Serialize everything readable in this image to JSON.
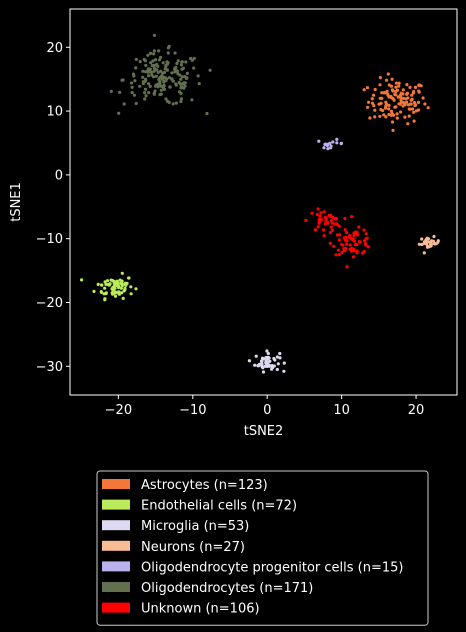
{
  "chart_data": {
    "type": "scatter",
    "xlabel": "tSNE2",
    "ylabel": "tSNE1",
    "xlim": [
      -26.5,
      25.5
    ],
    "ylim": [
      -34.5,
      26
    ],
    "xticks": [
      -20,
      -10,
      0,
      10,
      20
    ],
    "yticks": [
      -30,
      -20,
      -10,
      0,
      10,
      20
    ],
    "background": "#000000",
    "legend_position": "below",
    "series": [
      {
        "name": "Astrocytes (n=123)",
        "color": "#f37738",
        "n": 123,
        "clusters": [
          {
            "cx": 17.5,
            "cy": 11.5,
            "sx": 2.6,
            "sy": 2.3
          }
        ]
      },
      {
        "name": "Endothelial cells (n=72)",
        "color": "#bbea5b",
        "n": 72,
        "clusters": [
          {
            "cx": -20.5,
            "cy": -17.5,
            "sx": 1.7,
            "sy": 1.2
          }
        ]
      },
      {
        "name": "Microglia (n=53)",
        "color": "#dcd9f0",
        "n": 53,
        "clusters": [
          {
            "cx": 0.0,
            "cy": -29.3,
            "sx": 1.1,
            "sy": 1.0
          }
        ]
      },
      {
        "name": "Neurons (n=27)",
        "color": "#f9bc95",
        "n": 27,
        "clusters": [
          {
            "cx": 21.8,
            "cy": -10.7,
            "sx": 0.9,
            "sy": 0.6
          }
        ]
      },
      {
        "name": "Oligodendrocyte progenitor cells (n=15)",
        "color": "#b9b2ed",
        "n": 15,
        "clusters": [
          {
            "cx": 8.5,
            "cy": 4.9,
            "sx": 1.2,
            "sy": 0.4
          }
        ]
      },
      {
        "name": "Oligodendrocytes (n=171)",
        "color": "#627050",
        "n": 171,
        "clusters": [
          {
            "cx": -14.0,
            "cy": 15.0,
            "sx": 3.5,
            "sy": 2.8
          }
        ]
      },
      {
        "name": "Unknown (n=106)",
        "color": "#fe0000",
        "n": 106,
        "clusters": [
          {
            "cx": 11.5,
            "cy": -10.5,
            "sx": 1.8,
            "sy": 1.3,
            "w": 0.6
          },
          {
            "cx": 7.8,
            "cy": -7.2,
            "sx": 1.5,
            "sy": 1.1,
            "w": 0.4
          }
        ]
      }
    ]
  }
}
